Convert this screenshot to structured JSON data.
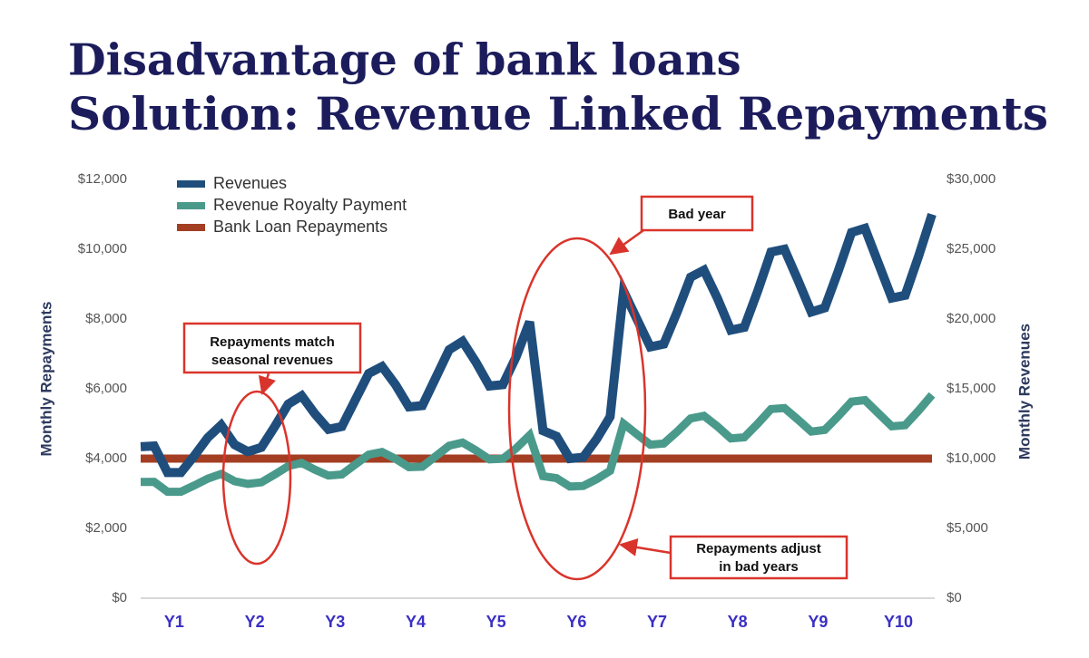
{
  "title": [
    "Disadvantage of bank loans",
    "Solution: Revenue Linked Repayments"
  ],
  "chart_data": {
    "type": "line",
    "ylabel": "Monthly Repayments",
    "y2label": "Monthly Revenues",
    "x": [
      0,
      2,
      4,
      6,
      8,
      10,
      12,
      14,
      16,
      18,
      20,
      22,
      24,
      26,
      28,
      30,
      32,
      34,
      36,
      38,
      40,
      42,
      44,
      46,
      48,
      50,
      52,
      54,
      56,
      58,
      60,
      62,
      64,
      66,
      68,
      70,
      72,
      74,
      76,
      78,
      80,
      82,
      84,
      86,
      88,
      90,
      92,
      94,
      96,
      98,
      100,
      102,
      104,
      106,
      108,
      110,
      112,
      114,
      116,
      118
    ],
    "xlim": [
      0,
      118
    ],
    "xticks": [
      {
        "value": 5,
        "label": "Y1"
      },
      {
        "value": 17,
        "label": "Y2"
      },
      {
        "value": 29,
        "label": "Y3"
      },
      {
        "value": 41,
        "label": "Y4"
      },
      {
        "value": 53,
        "label": "Y5"
      },
      {
        "value": 65,
        "label": "Y6"
      },
      {
        "value": 77,
        "label": "Y7"
      },
      {
        "value": 89,
        "label": "Y8"
      },
      {
        "value": 101,
        "label": "Y9"
      },
      {
        "value": 113,
        "label": "Y10"
      }
    ],
    "ylim": [
      0,
      12000
    ],
    "yticks": [
      {
        "value": 0,
        "label": "$0"
      },
      {
        "value": 2000,
        "label": "$2,000"
      },
      {
        "value": 4000,
        "label": "$4,000"
      },
      {
        "value": 6000,
        "label": "$6,000"
      },
      {
        "value": 8000,
        "label": "$8,000"
      },
      {
        "value": 10000,
        "label": "$10,000"
      },
      {
        "value": 12000,
        "label": "$12,000"
      }
    ],
    "y2lim": [
      0,
      30000
    ],
    "y2ticks": [
      {
        "value": 0,
        "label": "$0"
      },
      {
        "value": 5000,
        "label": "$5,000"
      },
      {
        "value": 10000,
        "label": "$10,000"
      },
      {
        "value": 15000,
        "label": "$15,000"
      },
      {
        "value": 20000,
        "label": "$20,000"
      },
      {
        "value": 25000,
        "label": "$25,000"
      },
      {
        "value": 30000,
        "label": "$30,000"
      }
    ],
    "legend": "upper left",
    "series": [
      {
        "name": "Revenues",
        "color": "#1f4e7d",
        "axis": "y2",
        "values": [
          10850,
          10900,
          9000,
          9000,
          10200,
          11500,
          12400,
          11000,
          10500,
          10800,
          12300,
          13900,
          14500,
          13200,
          12100,
          12300,
          14200,
          16100,
          16600,
          15300,
          13700,
          13800,
          15800,
          17800,
          18400,
          16900,
          15200,
          15300,
          17300,
          19800,
          12000,
          11600,
          10000,
          10100,
          11400,
          13000,
          22000,
          20000,
          18000,
          18200,
          20500,
          23000,
          23500,
          21500,
          19200,
          19400,
          22000,
          24800,
          25000,
          22800,
          20500,
          20800,
          23400,
          26200,
          26500,
          24000,
          21500,
          21700,
          24500,
          27500
        ]
      },
      {
        "name": "Revenue Royalty Payment",
        "color": "#4a9a8c",
        "values": [
          3330,
          3335,
          3050,
          3050,
          3230,
          3425,
          3560,
          3350,
          3275,
          3320,
          3545,
          3785,
          3875,
          3680,
          3515,
          3545,
          3830,
          4115,
          4190,
          3995,
          3755,
          3770,
          4070,
          4370,
          4460,
          4235,
          3980,
          3995,
          4295,
          4670,
          3500,
          3440,
          3200,
          3215,
          3410,
          3650,
          5000,
          4700,
          4400,
          4430,
          4775,
          5150,
          5225,
          4925,
          4580,
          4610,
          5000,
          5420,
          5450,
          5120,
          4775,
          4820,
          5210,
          5630,
          5675,
          5300,
          4925,
          4955,
          5375,
          5825
        ]
      },
      {
        "name": "Bank Loan Repayments",
        "color": "#a33e22",
        "values": [
          4000,
          4000,
          4000,
          4000,
          4000,
          4000,
          4000,
          4000,
          4000,
          4000,
          4000,
          4000,
          4000,
          4000,
          4000,
          4000,
          4000,
          4000,
          4000,
          4000,
          4000,
          4000,
          4000,
          4000,
          4000,
          4000,
          4000,
          4000,
          4000,
          4000,
          4000,
          4000,
          4000,
          4000,
          4000,
          4000,
          4000,
          4000,
          4000,
          4000,
          4000,
          4000,
          4000,
          4000,
          4000,
          4000,
          4000,
          4000,
          4000,
          4000,
          4000,
          4000,
          4000,
          4000,
          4000,
          4000,
          4000,
          4000,
          4000,
          4000
        ]
      }
    ],
    "annotations": [
      [
        "Repayments match",
        "seasonal revenues"
      ],
      [
        "Bad year"
      ],
      [
        "Repayments adjust",
        "in bad years"
      ]
    ]
  }
}
